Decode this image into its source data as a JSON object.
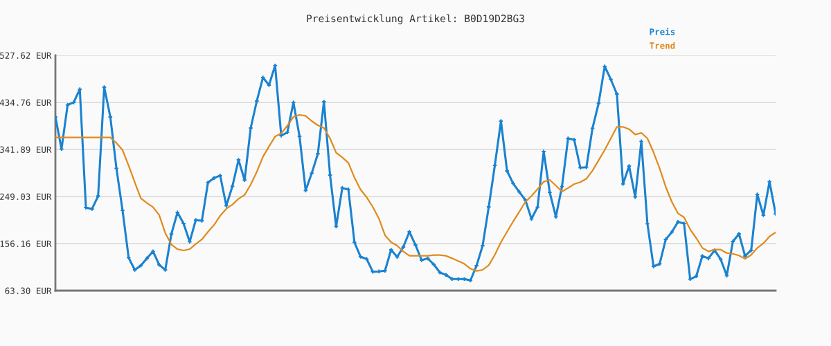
{
  "chart_data": {
    "type": "line",
    "title": "Preisentwicklung Artikel: B0D19D2BG3",
    "categories": [
      null,
      null,
      null,
      null,
      null,
      null,
      null,
      null,
      null,
      null,
      null,
      null,
      null,
      null,
      null,
      null,
      null,
      null,
      null,
      null,
      null,
      null,
      null,
      null,
      null,
      null,
      null,
      null,
      null,
      null,
      null,
      null,
      null,
      null,
      null,
      null,
      null,
      null,
      null,
      null,
      null,
      null,
      null,
      null,
      null,
      null,
      null,
      null,
      null,
      null,
      null,
      null,
      null,
      null,
      null,
      null,
      null,
      null,
      null,
      null,
      null,
      null,
      null,
      null,
      null,
      null,
      null,
      null,
      null,
      null,
      null,
      null,
      null,
      null,
      null,
      null,
      null,
      null,
      null,
      null,
      null,
      null,
      null,
      null,
      null,
      null,
      null,
      null,
      null,
      null,
      null,
      null,
      null,
      null,
      null,
      null,
      null,
      null,
      null,
      null,
      null,
      null,
      null,
      null,
      null,
      null,
      null,
      null,
      null,
      null,
      null,
      null,
      null,
      null,
      null,
      null,
      null,
      null,
      null
    ],
    "series": [
      {
        "name": "Preis",
        "color": "#1a82d0",
        "marker": "cross",
        "values": [
          406.1,
          342.8,
          429.7,
          434.8,
          460.7,
          227.2,
          224.5,
          250.0,
          464.8,
          406.1,
          304.6,
          221.7,
          128.4,
          104.3,
          112.9,
          127.0,
          140.7,
          114.3,
          104.3,
          174.9,
          217.6,
          195.8,
          159.8,
          202.6,
          201.2,
          276.8,
          285.5,
          290.4,
          230.9,
          269.1,
          321.4,
          281.4,
          384.2,
          437.5,
          483.9,
          468.9,
          507.6,
          369.2,
          375.6,
          434.8,
          367.8,
          260.9,
          295.0,
          333.3,
          436.1,
          291.3,
          189.9,
          265.9,
          263.1,
          158.5,
          130.2,
          125.7,
          100.6,
          101.1,
          102.5,
          143.9,
          129.8,
          149.3,
          179.4,
          153.4,
          123.4,
          127.0,
          114.8,
          99.2,
          94.3,
          86.1,
          86.1,
          86.1,
          83.4,
          112.5,
          152.1,
          228.5,
          310.5,
          397.9,
          299.6,
          274.9,
          258.1,
          242.2,
          204.9,
          228.1,
          337.8,
          257.2,
          209.0,
          268.6,
          363.7,
          361.0,
          306.0,
          306.8,
          383.8,
          433.0,
          505.8,
          480.2,
          451.1,
          274.0,
          309.1,
          248.1,
          357.8,
          195.3,
          111.1,
          116.2,
          164.4,
          178.9,
          198.9,
          195.8,
          86.1,
          91.6,
          131.6,
          127.0,
          142.9,
          125.2,
          92.9,
          160.3,
          175.3,
          131.6,
          142.9,
          253.1,
          212.2,
          278.2,
          214.9
        ]
      },
      {
        "name": "Trend",
        "color": "#e08a1e",
        "marker": "none",
        "values": [
          365.5,
          365.5,
          365.5,
          365.5,
          365.5,
          365.5,
          365.5,
          365.5,
          365.5,
          365.5,
          354.6,
          340.9,
          310.0,
          277.3,
          245.4,
          236.3,
          228.1,
          212.6,
          177.1,
          154.4,
          145.2,
          142.5,
          145.2,
          155.2,
          164.4,
          179.4,
          193.0,
          211.2,
          224.9,
          233.1,
          244.5,
          252.2,
          272.6,
          297.8,
          327.3,
          347.8,
          367.4,
          373.7,
          388.7,
          406.1,
          410.2,
          408.4,
          397.9,
          389.7,
          384.2,
          363.7,
          335.5,
          326.4,
          315.5,
          286.3,
          262.7,
          247.6,
          228.5,
          205.8,
          172.6,
          158.9,
          152.1,
          140.7,
          132.0,
          132.0,
          132.0,
          132.2,
          133.4,
          133.4,
          132.0,
          127.0,
          121.6,
          116.2,
          106.6,
          102.0,
          104.3,
          113.4,
          133.9,
          158.9,
          179.4,
          199.8,
          218.9,
          238.5,
          250.0,
          263.6,
          278.2,
          281.8,
          270.5,
          259.0,
          265.9,
          273.6,
          277.3,
          284.1,
          300.0,
          320.5,
          340.9,
          363.7,
          386.5,
          386.5,
          381.9,
          371.5,
          374.6,
          363.7,
          336.4,
          304.6,
          268.2,
          238.5,
          215.8,
          208.1,
          184.0,
          167.1,
          147.6,
          140.7,
          144.3,
          144.3,
          137.5,
          136.1,
          132.6,
          126.1,
          133.9,
          147.6,
          156.6,
          170.3,
          178.1
        ]
      }
    ],
    "ylim": [
      63.3,
      527.62
    ],
    "yticks": [
      {
        "value": 63.3,
        "label": "63.30 EUR"
      },
      {
        "value": 156.16,
        "label": "156.16 EUR"
      },
      {
        "value": 249.03,
        "label": "249.03 EUR"
      },
      {
        "value": 341.89,
        "label": "341.89 EUR"
      },
      {
        "value": 434.76,
        "label": "434.76 EUR"
      },
      {
        "value": 527.62,
        "label": "527.62 EUR"
      }
    ],
    "grid": "y",
    "legend": "top right"
  }
}
